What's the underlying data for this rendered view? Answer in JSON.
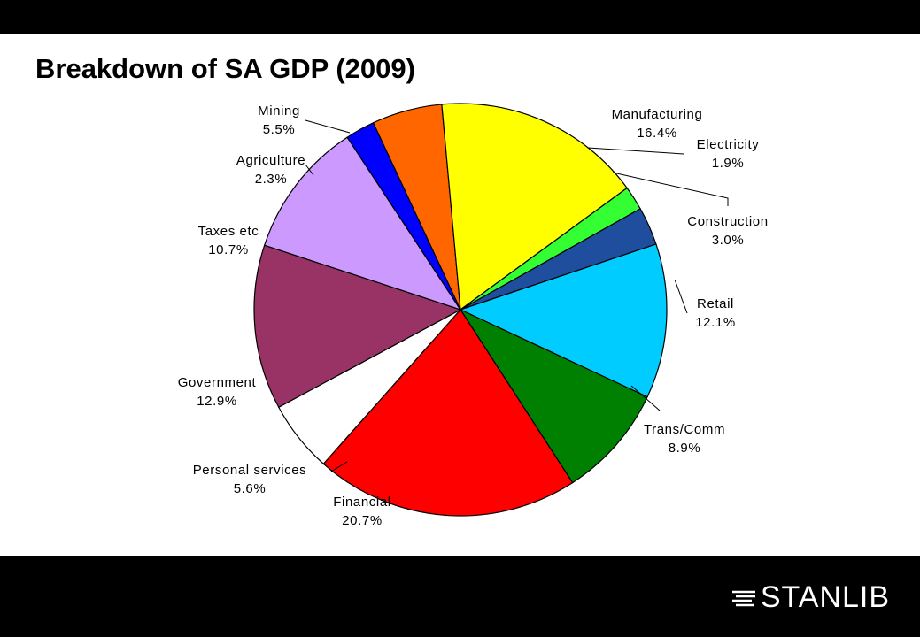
{
  "slide": {
    "title": "Breakdown of SA GDP (2009)"
  },
  "brand": {
    "logo_text": "STANLIB",
    "logo_text_color": "#ffffff",
    "bar_color": "#000000"
  },
  "chart_data": {
    "type": "pie",
    "title": "Breakdown of SA GDP (2009)",
    "start_angle_deg": 0,
    "direction": "clockwise",
    "slices": [
      {
        "label": "Mining",
        "value": 5.5,
        "display": "5.5%",
        "color": "#FF6600"
      },
      {
        "label": "Manufacturing",
        "value": 16.4,
        "display": "16.4%",
        "color": "#FFFF00"
      },
      {
        "label": "Electricity",
        "value": 1.9,
        "display": "1.9%",
        "color": "#33FF33"
      },
      {
        "label": "Construction",
        "value": 3.0,
        "display": "3.0%",
        "color": "#1F4E9E"
      },
      {
        "label": "Retail",
        "value": 12.1,
        "display": "12.1%",
        "color": "#00CCFF"
      },
      {
        "label": "Trans/Comm",
        "value": 8.9,
        "display": "8.9%",
        "color": "#008000"
      },
      {
        "label": "Financial",
        "value": 20.7,
        "display": "20.7%",
        "color": "#FF0000"
      },
      {
        "label": "Personal services",
        "value": 5.6,
        "display": "5.6%",
        "color": "#FFFFFF"
      },
      {
        "label": "Government",
        "value": 12.9,
        "display": "12.9%",
        "color": "#993366"
      },
      {
        "label": "Taxes etc",
        "value": 10.7,
        "display": "10.7%",
        "color": "#CC99FF"
      },
      {
        "label": "Agriculture",
        "value": 2.3,
        "display": "2.3%",
        "color": "#0000FF"
      }
    ]
  }
}
